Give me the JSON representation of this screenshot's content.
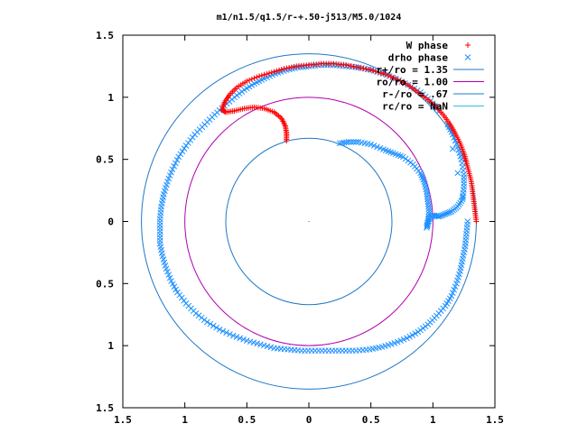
{
  "chart_data": {
    "type": "scatter",
    "title": "m1/n1.5/q1.5/r-+.50-j513/M5.0/1024",
    "xlim": [
      -1.5,
      1.5
    ],
    "ylim": [
      -1.5,
      1.5
    ],
    "x_tick_labels": [
      "1.5",
      "1",
      "0.5",
      "0",
      "0.5",
      "1",
      "1.5"
    ],
    "y_tick_labels": [
      "1.5",
      "1",
      "0.5",
      "0",
      "0.5",
      "1",
      "1.5"
    ],
    "tick_values": [
      -1.5,
      -1,
      -0.5,
      0,
      0.5,
      1,
      1.5
    ],
    "grid": false,
    "legend_position": "top-right",
    "series": [
      {
        "name": "W phase",
        "marker": "+",
        "color": "#ff0000",
        "points": [
          [
            1.35,
            0.0
          ],
          [
            1.34,
            0.08
          ],
          [
            1.33,
            0.16
          ],
          [
            1.32,
            0.24
          ],
          [
            1.31,
            0.32
          ],
          [
            1.29,
            0.4
          ],
          [
            1.27,
            0.48
          ],
          [
            1.25,
            0.55
          ],
          [
            1.22,
            0.63
          ],
          [
            1.18,
            0.71
          ],
          [
            1.14,
            0.78
          ],
          [
            1.09,
            0.85
          ],
          [
            1.03,
            0.92
          ],
          [
            0.96,
            0.98
          ],
          [
            0.88,
            1.04
          ],
          [
            0.8,
            1.1
          ],
          [
            0.7,
            1.15
          ],
          [
            0.6,
            1.19
          ],
          [
            0.5,
            1.22
          ],
          [
            0.4,
            1.24
          ],
          [
            0.3,
            1.26
          ],
          [
            0.2,
            1.27
          ],
          [
            0.1,
            1.27
          ],
          [
            0.0,
            1.26
          ],
          [
            -0.1,
            1.25
          ],
          [
            -0.2,
            1.23
          ],
          [
            -0.3,
            1.2
          ],
          [
            -0.4,
            1.17
          ],
          [
            -0.5,
            1.13
          ],
          [
            -0.58,
            1.08
          ],
          [
            -0.64,
            1.02
          ],
          [
            -0.68,
            0.96
          ],
          [
            -0.7,
            0.9
          ],
          [
            -0.67,
            0.88
          ],
          [
            -0.6,
            0.89
          ],
          [
            -0.52,
            0.91
          ],
          [
            -0.44,
            0.92
          ],
          [
            -0.36,
            0.91
          ],
          [
            -0.28,
            0.88
          ],
          [
            -0.22,
            0.83
          ],
          [
            -0.19,
            0.77
          ],
          [
            -0.18,
            0.71
          ],
          [
            -0.18,
            0.65
          ]
        ]
      },
      {
        "name": "drho phase",
        "marker": "x",
        "color": "#1e90ff",
        "points": [
          [
            0.25,
            0.63
          ],
          [
            0.32,
            0.64
          ],
          [
            0.4,
            0.64
          ],
          [
            0.5,
            0.62
          ],
          [
            0.6,
            0.58
          ],
          [
            0.68,
            0.55
          ],
          [
            0.76,
            0.52
          ],
          [
            0.84,
            0.46
          ],
          [
            0.9,
            0.39
          ],
          [
            0.93,
            0.32
          ],
          [
            0.95,
            0.24
          ],
          [
            0.96,
            0.16
          ],
          [
            0.97,
            0.08
          ],
          [
            0.96,
            0.0
          ],
          [
            0.95,
            -0.05
          ],
          [
            0.97,
            0.02
          ],
          [
            1.0,
            0.05
          ],
          [
            1.05,
            0.04
          ],
          [
            1.1,
            0.06
          ],
          [
            1.15,
            0.08
          ],
          [
            1.2,
            0.12
          ],
          [
            1.24,
            0.18
          ],
          [
            1.25,
            0.28
          ],
          [
            1.25,
            0.38
          ],
          [
            1.23,
            0.5
          ],
          [
            1.2,
            0.6
          ],
          [
            1.16,
            0.7
          ],
          [
            1.12,
            0.78
          ],
          [
            1.28,
            0.0
          ],
          [
            1.27,
            -0.1
          ],
          [
            1.26,
            -0.2
          ],
          [
            1.24,
            -0.3
          ],
          [
            1.22,
            -0.4
          ],
          [
            1.19,
            -0.5
          ],
          [
            1.15,
            -0.6
          ],
          [
            1.1,
            -0.68
          ],
          [
            1.03,
            -0.76
          ],
          [
            0.96,
            -0.83
          ],
          [
            0.88,
            -0.89
          ],
          [
            0.79,
            -0.94
          ],
          [
            0.69,
            -0.98
          ],
          [
            0.59,
            -1.01
          ],
          [
            0.49,
            -1.03
          ],
          [
            0.38,
            -1.04
          ],
          [
            0.27,
            -1.04
          ],
          [
            0.16,
            -1.04
          ],
          [
            0.05,
            -1.04
          ],
          [
            -0.06,
            -1.04
          ],
          [
            -0.17,
            -1.03
          ],
          [
            -0.28,
            -1.02
          ],
          [
            -0.39,
            -0.99
          ],
          [
            -0.5,
            -0.96
          ],
          [
            -0.61,
            -0.92
          ],
          [
            -0.72,
            -0.87
          ],
          [
            -0.82,
            -0.81
          ],
          [
            -0.91,
            -0.74
          ],
          [
            -0.99,
            -0.66
          ],
          [
            -1.06,
            -0.57
          ],
          [
            -1.11,
            -0.48
          ],
          [
            -1.15,
            -0.38
          ],
          [
            -1.18,
            -0.28
          ],
          [
            -1.2,
            -0.18
          ],
          [
            -1.2,
            -0.08
          ],
          [
            -1.2,
            0.02
          ],
          [
            -1.19,
            0.12
          ],
          [
            -1.17,
            0.22
          ],
          [
            -1.14,
            0.32
          ],
          [
            -1.1,
            0.42
          ],
          [
            -1.05,
            0.52
          ],
          [
            -0.99,
            0.61
          ],
          [
            -0.92,
            0.7
          ],
          [
            -0.84,
            0.78
          ],
          [
            -0.76,
            0.86
          ],
          [
            -0.68,
            0.93
          ],
          [
            -0.6,
            1.0
          ],
          [
            -0.52,
            1.06
          ],
          [
            -0.44,
            1.11
          ],
          [
            -0.36,
            1.15
          ],
          [
            -0.27,
            1.19
          ],
          [
            -0.18,
            1.22
          ],
          [
            -0.09,
            1.24
          ],
          [
            0.0,
            1.25
          ],
          [
            0.1,
            1.26
          ],
          [
            0.2,
            1.26
          ],
          [
            0.3,
            1.25
          ],
          [
            0.4,
            1.24
          ],
          [
            0.5,
            1.22
          ],
          [
            0.6,
            1.19
          ],
          [
            0.7,
            1.15
          ],
          [
            0.8,
            1.1
          ],
          [
            0.9,
            1.04
          ],
          [
            0.98,
            0.97
          ],
          [
            1.05,
            0.89
          ]
        ]
      }
    ],
    "circles": [
      {
        "label": "r+/ro = 1.35",
        "r": 1.35,
        "color": "#1e78c8"
      },
      {
        "label": "ro/ro = 1.00",
        "r": 1.0,
        "color": "#b000b0"
      },
      {
        "label": "r-/ro = .67",
        "r": 0.67,
        "color": "#1e78c8"
      },
      {
        "label": "rc/ro = NaN",
        "r": null,
        "color": "#33c0e0"
      }
    ]
  }
}
